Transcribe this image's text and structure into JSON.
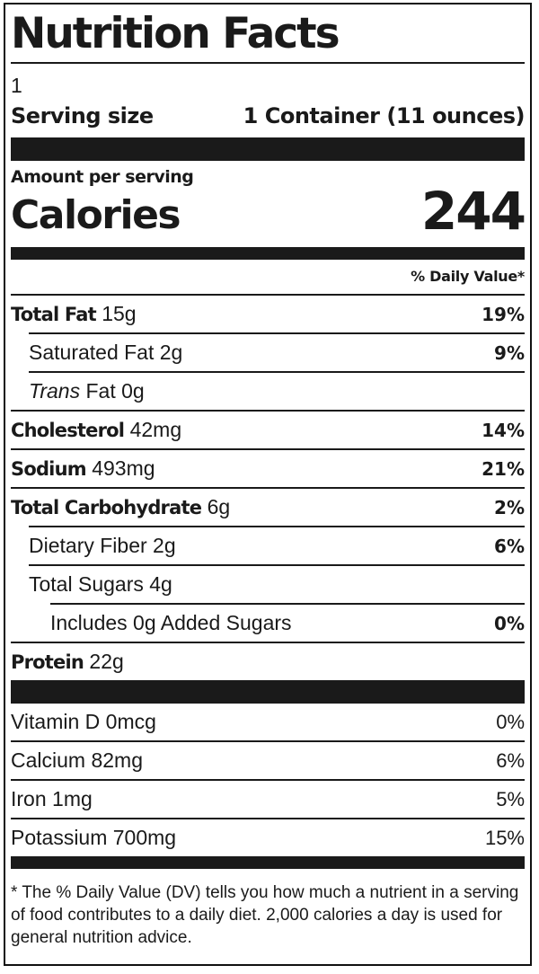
{
  "title": "Nutrition Facts",
  "servings_per_container": "1",
  "serving": {
    "label": "Serving size",
    "value": "1 Container (11 ounces)"
  },
  "amount_per_serving": "Amount per serving",
  "calories": {
    "label": "Calories",
    "value": "244"
  },
  "daily_value_header": "% Daily Value*",
  "nutrients": {
    "total_fat": {
      "name": "Total Fat",
      "amount": "15g",
      "dv": "19%"
    },
    "saturated_fat": {
      "name": "Saturated Fat",
      "amount": "2g",
      "dv": "9%"
    },
    "trans_fat": {
      "name_italic": "Trans",
      "name": "Fat",
      "amount": "0g"
    },
    "cholesterol": {
      "name": "Cholesterol",
      "amount": "42mg",
      "dv": "14%"
    },
    "sodium": {
      "name": "Sodium",
      "amount": "493mg",
      "dv": "21%"
    },
    "total_carbohydrate": {
      "name": "Total Carbohydrate",
      "amount": "6g",
      "dv": "2%"
    },
    "dietary_fiber": {
      "name": "Dietary Fiber",
      "amount": "2g",
      "dv": "6%"
    },
    "total_sugars": {
      "name": "Total Sugars",
      "amount": "4g"
    },
    "added_sugars": {
      "name": "Includes 0g Added Sugars",
      "dv": "0%"
    },
    "protein": {
      "name": "Protein",
      "amount": "22g"
    }
  },
  "vitamins": [
    {
      "name": "Vitamin D 0mcg",
      "dv": "0%"
    },
    {
      "name": "Calcium 82mg",
      "dv": "6%"
    },
    {
      "name": "Iron 1mg",
      "dv": "5%"
    },
    {
      "name": "Potassium 700mg",
      "dv": "15%"
    }
  ],
  "footnote": "* The % Daily Value (DV) tells you how much a nutrient in a serving of food contributes to a daily diet. 2,000 calories a day is used for general nutrition advice."
}
